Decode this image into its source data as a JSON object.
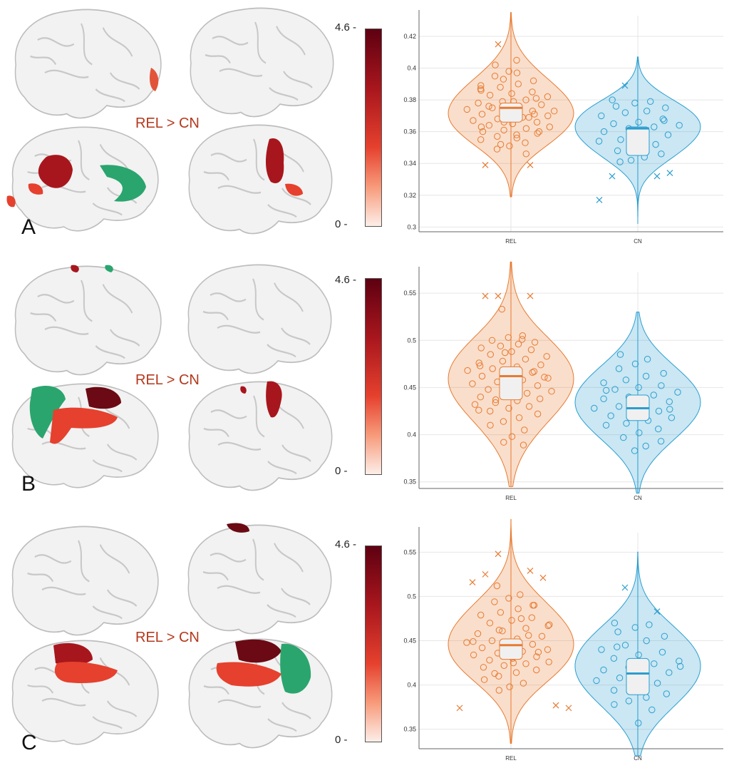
{
  "colors": {
    "rel": "#e87a30",
    "cn": "#2a9ed0",
    "contrast": "#b5381b",
    "green": "#2aa56e"
  },
  "colorbar": {
    "max_label": "4.6 -",
    "min_label": "0 -"
  },
  "panels": [
    {
      "letter": "A",
      "contrast": "REL > CN"
    },
    {
      "letter": "B",
      "contrast": "REL > CN"
    },
    {
      "letter": "C",
      "contrast": "REL > CN"
    }
  ],
  "chart_data": [
    {
      "type": "violin",
      "categories": [
        "REL",
        "CN"
      ],
      "ylim": [
        0.297,
        0.433
      ],
      "yticks": [
        "0.3",
        "0.32",
        "0.34",
        "0.36",
        "0.38",
        "0.4",
        "0.42"
      ],
      "grid": true,
      "series": [
        {
          "median": 0.375,
          "q1": 0.366,
          "q3": 0.378,
          "min": 0.319,
          "max": 0.435,
          "points": [
            0.402,
            0.405,
            0.398,
            0.395,
            0.392,
            0.39,
            0.388,
            0.387,
            0.385,
            0.384,
            0.383,
            0.382,
            0.38,
            0.379,
            0.378,
            0.377,
            0.376,
            0.375,
            0.374,
            0.373,
            0.372,
            0.371,
            0.37,
            0.369,
            0.368,
            0.367,
            0.366,
            0.365,
            0.364,
            0.363,
            0.362,
            0.361,
            0.36,
            0.359,
            0.358,
            0.357,
            0.355,
            0.353,
            0.351,
            0.349,
            0.346,
            0.397,
            0.393,
            0.386,
            0.381,
            0.379,
            0.376,
            0.373,
            0.369,
            0.366,
            0.363,
            0.36,
            0.356,
            0.352,
            0.389,
            0.371
          ],
          "outliers": [
            0.415,
            0.339,
            0.339
          ]
        },
        {
          "median": 0.362,
          "q1": 0.345,
          "q3": 0.363,
          "min": 0.302,
          "max": 0.407,
          "points": [
            0.38,
            0.379,
            0.378,
            0.376,
            0.375,
            0.373,
            0.372,
            0.37,
            0.368,
            0.366,
            0.365,
            0.364,
            0.363,
            0.362,
            0.36,
            0.358,
            0.357,
            0.355,
            0.354,
            0.352,
            0.35,
            0.348,
            0.346,
            0.344,
            0.342,
            0.341,
            0.367,
            0.361
          ],
          "outliers": [
            0.389,
            0.332,
            0.332,
            0.334,
            0.317
          ]
        }
      ]
    },
    {
      "type": "violin",
      "categories": [
        "REL",
        "CN"
      ],
      "ylim": [
        0.343,
        0.572
      ],
      "yticks": [
        "0.35",
        "0.4",
        "0.45",
        "0.5",
        "0.55"
      ],
      "grid": true,
      "series": [
        {
          "median": 0.462,
          "q1": 0.437,
          "q3": 0.472,
          "min": 0.345,
          "max": 0.583,
          "points": [
            0.533,
            0.505,
            0.503,
            0.5,
            0.498,
            0.496,
            0.494,
            0.492,
            0.49,
            0.488,
            0.485,
            0.483,
            0.48,
            0.478,
            0.476,
            0.474,
            0.472,
            0.47,
            0.468,
            0.466,
            0.464,
            0.462,
            0.46,
            0.458,
            0.456,
            0.454,
            0.452,
            0.45,
            0.448,
            0.446,
            0.444,
            0.442,
            0.44,
            0.438,
            0.436,
            0.434,
            0.432,
            0.43,
            0.428,
            0.425,
            0.422,
            0.418,
            0.414,
            0.41,
            0.405,
            0.398,
            0.392,
            0.389,
            0.501,
            0.487,
            0.473,
            0.461,
            0.449,
            0.437,
            0.426,
            0.467,
            0.455
          ],
          "outliers": [
            0.547,
            0.547,
            0.547
          ]
        },
        {
          "median": 0.428,
          "q1": 0.415,
          "q3": 0.442,
          "min": 0.338,
          "max": 0.53,
          "points": [
            0.485,
            0.48,
            0.475,
            0.47,
            0.465,
            0.462,
            0.458,
            0.455,
            0.452,
            0.45,
            0.448,
            0.445,
            0.442,
            0.44,
            0.438,
            0.435,
            0.432,
            0.43,
            0.428,
            0.425,
            0.422,
            0.42,
            0.418,
            0.415,
            0.412,
            0.41,
            0.406,
            0.402,
            0.397,
            0.393,
            0.388,
            0.383,
            0.447,
            0.427
          ],
          "outliers": []
        }
      ]
    },
    {
      "type": "violin",
      "categories": [
        "REL",
        "CN"
      ],
      "ylim": [
        0.328,
        0.572
      ],
      "yticks": [
        "0.35",
        "0.4",
        "0.45",
        "0.5",
        "0.55"
      ],
      "grid": true,
      "series": [
        {
          "median": 0.445,
          "q1": 0.429,
          "q3": 0.452,
          "min": 0.334,
          "max": 0.587,
          "points": [
            0.512,
            0.502,
            0.498,
            0.494,
            0.49,
            0.486,
            0.482,
            0.479,
            0.476,
            0.473,
            0.47,
            0.467,
            0.464,
            0.461,
            0.458,
            0.455,
            0.452,
            0.45,
            0.448,
            0.446,
            0.444,
            0.442,
            0.44,
            0.438,
            0.436,
            0.434,
            0.432,
            0.43,
            0.428,
            0.426,
            0.424,
            0.422,
            0.42,
            0.417,
            0.414,
            0.41,
            0.406,
            0.402,
            0.398,
            0.394,
            0.49,
            0.475,
            0.462,
            0.449,
            0.437,
            0.425,
            0.413,
            0.468,
            0.456
          ],
          "outliers": [
            0.548,
            0.529,
            0.525,
            0.521,
            0.516,
            0.377,
            0.374,
            0.374
          ]
        },
        {
          "median": 0.413,
          "q1": 0.389,
          "q3": 0.43,
          "min": 0.32,
          "max": 0.55,
          "points": [
            0.47,
            0.468,
            0.465,
            0.46,
            0.455,
            0.45,
            0.445,
            0.44,
            0.437,
            0.434,
            0.43,
            0.427,
            0.424,
            0.42,
            0.417,
            0.414,
            0.411,
            0.408,
            0.405,
            0.402,
            0.398,
            0.394,
            0.39,
            0.386,
            0.382,
            0.378,
            0.372,
            0.357,
            0.443,
            0.421
          ],
          "outliers": [
            0.51,
            0.483
          ]
        }
      ]
    }
  ]
}
